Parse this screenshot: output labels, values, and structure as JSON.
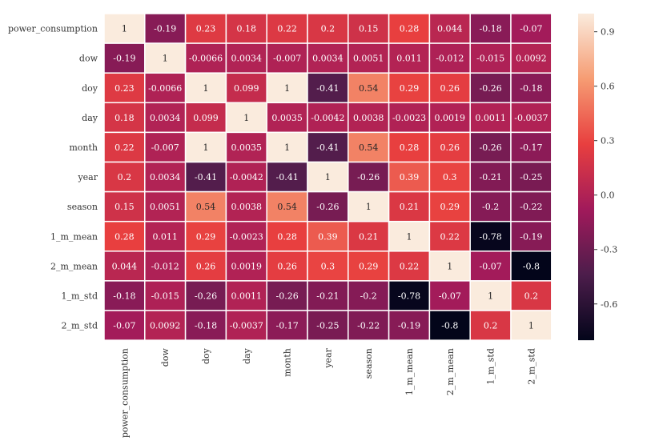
{
  "chart_data": {
    "type": "heatmap",
    "labels": [
      "power_consumption",
      "dow",
      "doy",
      "day",
      "month",
      "year",
      "season",
      "1_m_mean",
      "2_m_mean",
      "1_m_std",
      "2_m_std"
    ],
    "matrix": [
      [
        1,
        -0.19,
        0.23,
        0.18,
        0.22,
        0.2,
        0.15,
        0.28,
        0.044,
        -0.18,
        -0.07
      ],
      [
        -0.19,
        1,
        -0.0066,
        0.0034,
        -0.007,
        0.0034,
        0.0051,
        0.011,
        -0.012,
        -0.015,
        0.0092
      ],
      [
        0.23,
        -0.0066,
        1,
        0.099,
        1,
        -0.41,
        0.54,
        0.29,
        0.26,
        -0.26,
        -0.18
      ],
      [
        0.18,
        0.0034,
        0.099,
        1,
        0.0035,
        -0.0042,
        0.0038,
        -0.0023,
        0.0019,
        0.0011,
        -0.0037
      ],
      [
        0.22,
        -0.007,
        1,
        0.0035,
        1,
        -0.41,
        0.54,
        0.28,
        0.26,
        -0.26,
        -0.17
      ],
      [
        0.2,
        0.0034,
        -0.41,
        -0.0042,
        -0.41,
        1,
        -0.26,
        0.39,
        0.3,
        -0.21,
        -0.25
      ],
      [
        0.15,
        0.0051,
        0.54,
        0.0038,
        0.54,
        -0.26,
        1,
        0.21,
        0.29,
        -0.2,
        -0.22
      ],
      [
        0.28,
        0.011,
        0.29,
        -0.0023,
        0.28,
        0.39,
        0.21,
        1,
        0.22,
        -0.78,
        -0.19
      ],
      [
        0.044,
        -0.012,
        0.26,
        0.0019,
        0.26,
        0.3,
        0.29,
        0.22,
        1,
        -0.07,
        -0.8
      ],
      [
        -0.18,
        -0.015,
        -0.26,
        0.0011,
        -0.26,
        -0.21,
        -0.2,
        -0.78,
        -0.07,
        1,
        0.2
      ],
      [
        -0.07,
        0.0092,
        -0.18,
        -0.0037,
        -0.17,
        -0.25,
        -0.22,
        -0.19,
        -0.8,
        0.2,
        1
      ]
    ],
    "colorbar": {
      "range": [
        -0.8,
        1
      ],
      "ticks": [
        0.9,
        0.6,
        0.3,
        0.0,
        -0.3,
        -0.6
      ],
      "tick_labels": [
        "0.9",
        "0.6",
        "0.3",
        "0.0",
        "-0.3",
        "-0.6"
      ]
    },
    "colormap": "rocket",
    "colormap_stops": [
      "#03051a",
      "#4c1d4b",
      "#a11a5b",
      "#e83f3f",
      "#f69c73",
      "#faebdd"
    ],
    "cell_border_color": "#ffffff"
  }
}
